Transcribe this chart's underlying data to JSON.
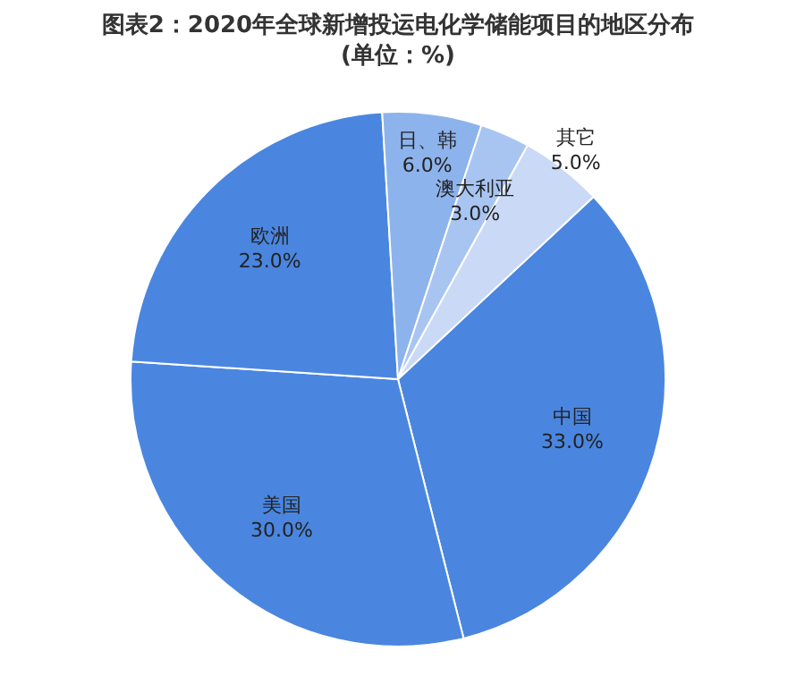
{
  "chart_data": {
    "type": "pie",
    "title": "图表2：2020年全球新增投运电化学储能项目的地区分布",
    "subtitle": "(单位：%)",
    "categories": [
      "中国",
      "美国",
      "欧洲",
      "日、韩",
      "澳大利亚",
      "其它"
    ],
    "values": [
      33.0,
      30.0,
      23.0,
      6.0,
      3.0,
      5.0
    ],
    "value_labels": [
      "33.0%",
      "30.0%",
      "23.0%",
      "6.0%",
      "3.0%",
      "5.0%"
    ],
    "colors": [
      "#4a86df",
      "#4a86df",
      "#4a86df",
      "#8db3ec",
      "#a8c5f2",
      "#c9d9f6"
    ],
    "legend": false
  }
}
